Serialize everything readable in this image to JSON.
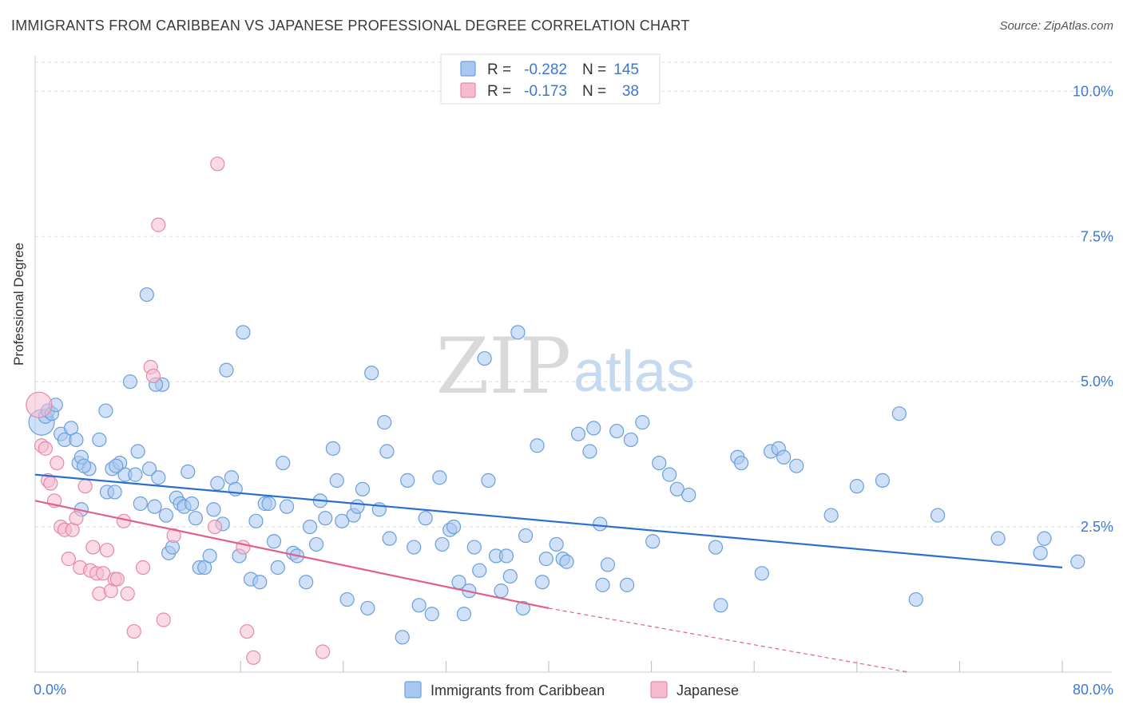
{
  "title": "IMMIGRANTS FROM CARIBBEAN VS JAPANESE PROFESSIONAL DEGREE CORRELATION CHART",
  "source": "Source: ZipAtlas.com",
  "watermark": {
    "left": "ZIP",
    "right": "atlas"
  },
  "colors": {
    "blue_fill": "#a9c8f0",
    "blue_stroke": "#6a9fdb",
    "blue_line": "#2a6fd0",
    "pink_fill": "#f5bcd0",
    "pink_stroke": "#e689a9",
    "pink_line": "#e0608c",
    "axis_text": "#3a78d4",
    "grid": "#dddddd"
  },
  "legend": [
    {
      "r_label": "R =",
      "r_value": "-0.282",
      "n_label": "N =",
      "n_value": "145"
    },
    {
      "r_label": "R =",
      "r_value": "-0.173",
      "n_label": "N =",
      "n_value": "38"
    }
  ],
  "chart_data": {
    "type": "scatter",
    "ylabel": "Professional Degree",
    "xlim": [
      0,
      80
    ],
    "ylim": [
      0,
      10.5
    ],
    "x_tick_labels": [
      "0.0%",
      "80.0%"
    ],
    "y_ticks": [
      2.5,
      5.0,
      7.5,
      10.0
    ],
    "y_tick_labels": [
      "2.5%",
      "5.0%",
      "7.5%",
      "10.0%"
    ],
    "grid": "horizontal dashed",
    "legend_position": "top-center",
    "series": [
      {
        "name": "Immigrants from Caribbean",
        "trend": {
          "x": [
            0,
            80
          ],
          "y": [
            3.4,
            1.8
          ],
          "dashed_from": null
        },
        "points": [
          [
            0.5,
            4.3
          ],
          [
            0.8,
            4.4
          ],
          [
            1.0,
            4.5
          ],
          [
            1.3,
            4.45
          ],
          [
            1.6,
            4.6
          ],
          [
            2.0,
            4.1
          ],
          [
            2.3,
            4.0
          ],
          [
            2.8,
            4.2
          ],
          [
            3.2,
            4.0
          ],
          [
            3.4,
            3.6
          ],
          [
            3.6,
            3.7
          ],
          [
            4.2,
            3.5
          ],
          [
            5.0,
            4.0
          ],
          [
            5.5,
            4.5
          ],
          [
            3.6,
            2.8
          ],
          [
            5.6,
            3.1
          ],
          [
            6.0,
            3.5
          ],
          [
            6.2,
            3.1
          ],
          [
            6.6,
            3.6
          ],
          [
            7.0,
            3.4
          ],
          [
            7.4,
            5.0
          ],
          [
            7.8,
            3.4
          ],
          [
            8.0,
            3.8
          ],
          [
            8.2,
            2.9
          ],
          [
            8.7,
            6.5
          ],
          [
            8.9,
            3.5
          ],
          [
            9.3,
            2.85
          ],
          [
            9.6,
            3.35
          ],
          [
            9.9,
            4.95
          ],
          [
            10.2,
            2.7
          ],
          [
            10.4,
            2.05
          ],
          [
            10.7,
            2.15
          ],
          [
            11.0,
            3.0
          ],
          [
            11.3,
            2.9
          ],
          [
            11.6,
            2.85
          ],
          [
            11.9,
            3.45
          ],
          [
            12.2,
            2.9
          ],
          [
            12.5,
            2.65
          ],
          [
            12.8,
            1.8
          ],
          [
            13.2,
            1.8
          ],
          [
            13.6,
            2.0
          ],
          [
            13.9,
            2.8
          ],
          [
            14.2,
            3.25
          ],
          [
            14.6,
            2.55
          ],
          [
            14.9,
            5.2
          ],
          [
            15.3,
            3.35
          ],
          [
            15.6,
            3.15
          ],
          [
            15.9,
            2.0
          ],
          [
            16.2,
            5.85
          ],
          [
            16.8,
            1.6
          ],
          [
            17.2,
            2.6
          ],
          [
            17.5,
            1.55
          ],
          [
            17.9,
            2.9
          ],
          [
            18.2,
            2.9
          ],
          [
            18.6,
            2.25
          ],
          [
            18.9,
            1.8
          ],
          [
            19.3,
            3.6
          ],
          [
            19.6,
            2.85
          ],
          [
            20.1,
            2.05
          ],
          [
            20.4,
            2.0
          ],
          [
            21.1,
            1.55
          ],
          [
            21.4,
            2.5
          ],
          [
            21.9,
            2.2
          ],
          [
            22.2,
            2.95
          ],
          [
            22.6,
            2.65
          ],
          [
            23.2,
            3.85
          ],
          [
            23.5,
            3.3
          ],
          [
            23.9,
            2.6
          ],
          [
            24.3,
            1.25
          ],
          [
            24.8,
            2.7
          ],
          [
            25.1,
            2.85
          ],
          [
            25.5,
            3.15
          ],
          [
            25.9,
            1.1
          ],
          [
            26.2,
            5.15
          ],
          [
            26.8,
            2.8
          ],
          [
            27.2,
            4.3
          ],
          [
            27.6,
            2.3
          ],
          [
            27.4,
            3.8
          ],
          [
            28.6,
            0.6
          ],
          [
            29.0,
            3.3
          ],
          [
            29.5,
            2.15
          ],
          [
            29.9,
            1.15
          ],
          [
            30.4,
            2.65
          ],
          [
            30.9,
            1.0
          ],
          [
            31.5,
            3.35
          ],
          [
            31.7,
            2.2
          ],
          [
            32.3,
            2.45
          ],
          [
            32.6,
            2.5
          ],
          [
            33.0,
            1.55
          ],
          [
            33.4,
            1.0
          ],
          [
            33.8,
            1.4
          ],
          [
            34.2,
            2.15
          ],
          [
            34.6,
            1.75
          ],
          [
            35.0,
            5.4
          ],
          [
            35.3,
            3.3
          ],
          [
            35.9,
            2.0
          ],
          [
            36.3,
            1.4
          ],
          [
            36.7,
            2.0
          ],
          [
            37.0,
            1.65
          ],
          [
            37.6,
            5.85
          ],
          [
            38.0,
            1.1
          ],
          [
            38.2,
            2.35
          ],
          [
            39.1,
            3.9
          ],
          [
            39.5,
            1.55
          ],
          [
            39.8,
            1.95
          ],
          [
            40.6,
            2.2
          ],
          [
            41.1,
            1.95
          ],
          [
            41.4,
            1.9
          ],
          [
            42.3,
            4.1
          ],
          [
            43.2,
            3.8
          ],
          [
            43.5,
            4.2
          ],
          [
            44.0,
            2.55
          ],
          [
            44.2,
            1.5
          ],
          [
            44.6,
            1.85
          ],
          [
            45.3,
            4.15
          ],
          [
            46.1,
            1.5
          ],
          [
            46.4,
            4.0
          ],
          [
            47.3,
            4.3
          ],
          [
            48.1,
            2.25
          ],
          [
            48.6,
            3.6
          ],
          [
            49.4,
            3.4
          ],
          [
            50.0,
            3.15
          ],
          [
            50.9,
            3.05
          ],
          [
            53.0,
            2.15
          ],
          [
            53.4,
            1.15
          ],
          [
            54.7,
            3.7
          ],
          [
            55.0,
            3.6
          ],
          [
            56.6,
            1.7
          ],
          [
            57.3,
            3.8
          ],
          [
            57.9,
            3.85
          ],
          [
            58.3,
            3.7
          ],
          [
            59.3,
            3.55
          ],
          [
            62.0,
            2.7
          ],
          [
            64.0,
            3.2
          ],
          [
            66.0,
            3.3
          ],
          [
            67.3,
            4.45
          ],
          [
            68.6,
            1.25
          ],
          [
            70.3,
            2.7
          ],
          [
            75.0,
            2.3
          ],
          [
            78.3,
            2.05
          ],
          [
            78.6,
            2.3
          ],
          [
            81.2,
            1.9
          ],
          [
            3.8,
            3.55
          ],
          [
            6.3,
            3.55
          ],
          [
            9.4,
            4.95
          ]
        ]
      },
      {
        "name": "Japanese",
        "trend": {
          "x": [
            0,
            40,
            68
          ],
          "y": [
            2.95,
            1.1,
            0.0
          ],
          "dashed_from": 40
        },
        "points": [
          [
            0.3,
            4.6
          ],
          [
            0.5,
            3.9
          ],
          [
            0.8,
            3.85
          ],
          [
            1.0,
            3.3
          ],
          [
            1.2,
            3.25
          ],
          [
            1.5,
            2.95
          ],
          [
            1.7,
            3.6
          ],
          [
            2.0,
            2.5
          ],
          [
            2.3,
            2.45
          ],
          [
            2.6,
            1.95
          ],
          [
            2.9,
            2.45
          ],
          [
            3.2,
            2.65
          ],
          [
            3.5,
            1.8
          ],
          [
            3.9,
            3.2
          ],
          [
            4.3,
            1.75
          ],
          [
            4.5,
            2.15
          ],
          [
            4.8,
            1.7
          ],
          [
            5.0,
            1.35
          ],
          [
            5.3,
            1.7
          ],
          [
            5.6,
            2.1
          ],
          [
            5.9,
            1.4
          ],
          [
            6.2,
            1.6
          ],
          [
            6.4,
            1.6
          ],
          [
            6.9,
            2.6
          ],
          [
            7.2,
            1.35
          ],
          [
            7.7,
            0.7
          ],
          [
            8.4,
            1.8
          ],
          [
            9.0,
            5.25
          ],
          [
            9.2,
            5.1
          ],
          [
            9.6,
            7.7
          ],
          [
            10.0,
            0.9
          ],
          [
            10.8,
            2.35
          ],
          [
            14.0,
            2.5
          ],
          [
            14.2,
            8.75
          ],
          [
            16.2,
            2.15
          ],
          [
            16.5,
            0.7
          ],
          [
            17.0,
            0.25
          ],
          [
            22.4,
            0.35
          ]
        ]
      }
    ]
  }
}
